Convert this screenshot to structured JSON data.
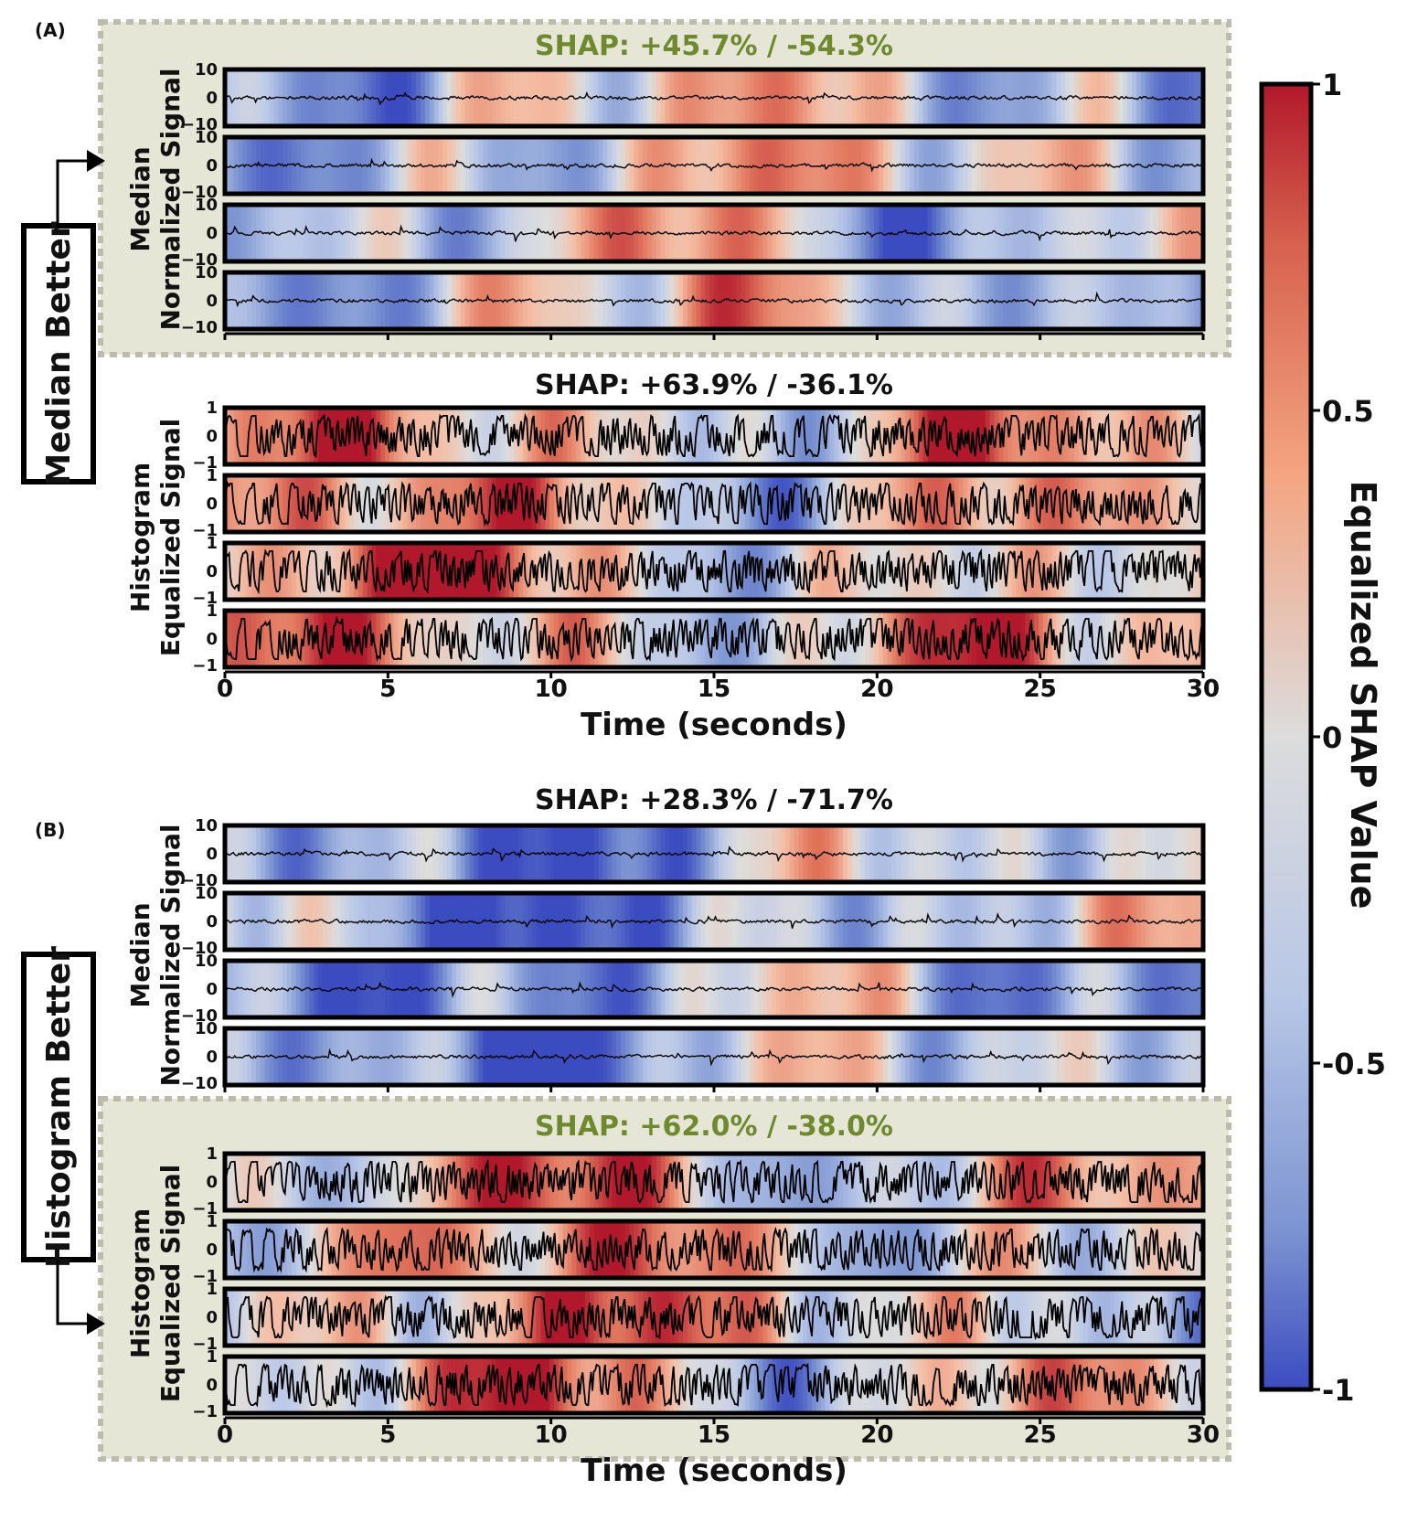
{
  "figure": {
    "panel_labels": [
      "(A)",
      "(B)"
    ],
    "sides": [
      "Median Better",
      "Histogram Better"
    ],
    "colorbar": {
      "label": "Equalized SHAP Value",
      "ticks": [
        "1",
        "0.5",
        "0",
        "-0.5",
        "-1"
      ],
      "colors": {
        "high": "#b2182b",
        "mid": "#dddddd",
        "low": "#3b4cc0"
      }
    },
    "colors": {
      "highlight_bg": "#e6e6d6",
      "highlight_border": "#bcbcaa",
      "highlight_title": "#6f8a2e"
    }
  },
  "chart_data": [
    {
      "type": "heatmap",
      "panel": "(A)",
      "title": "SHAP: +45.7% / -54.3%",
      "highlighted": true,
      "ylabel": [
        "Median",
        "Normalized Signal"
      ],
      "xlabel": "",
      "xlim": [
        0,
        30
      ],
      "xticks": [
        0,
        5,
        10,
        15,
        20,
        25,
        30
      ],
      "ylim": [
        -10,
        10
      ],
      "yticks": [
        "10",
        "0",
        "−10"
      ],
      "channels": 4,
      "signal_amplitude": 1.2,
      "shap_range": [
        -1,
        1
      ],
      "positive_pct": 45.7,
      "negative_pct": 54.3
    },
    {
      "type": "heatmap",
      "panel": "(A)",
      "title": "SHAP: +63.9% / -36.1%",
      "highlighted": false,
      "ylabel": [
        "Histogram",
        "Equalized Signal"
      ],
      "xlabel": "Time (seconds)",
      "xlim": [
        0,
        30
      ],
      "xticks": [
        0,
        5,
        10,
        15,
        20,
        25,
        30
      ],
      "ylim": [
        -1,
        1
      ],
      "yticks": [
        "1",
        "0",
        "−1"
      ],
      "channels": 4,
      "signal_amplitude": 0.85,
      "shap_range": [
        -1,
        1
      ],
      "positive_pct": 63.9,
      "negative_pct": 36.1
    },
    {
      "type": "heatmap",
      "panel": "(B)",
      "title": "SHAP: +28.3% / -71.7%",
      "highlighted": false,
      "ylabel": [
        "Median",
        "Normalized Signal"
      ],
      "xlabel": "",
      "xlim": [
        0,
        30
      ],
      "xticks": [
        0,
        5,
        10,
        15,
        20,
        25,
        30
      ],
      "ylim": [
        -10,
        10
      ],
      "yticks": [
        "10",
        "0",
        "−10"
      ],
      "channels": 4,
      "signal_amplitude": 1.2,
      "shap_range": [
        -1,
        1
      ],
      "positive_pct": 28.3,
      "negative_pct": 71.7
    },
    {
      "type": "heatmap",
      "panel": "(B)",
      "title": "SHAP: +62.0% / -38.0%",
      "highlighted": true,
      "ylabel": [
        "Histogram",
        "Equalized Signal"
      ],
      "xlabel": "Time (seconds)",
      "xlim": [
        0,
        30
      ],
      "xticks": [
        0,
        5,
        10,
        15,
        20,
        25,
        30
      ],
      "ylim": [
        -1,
        1
      ],
      "yticks": [
        "1",
        "0",
        "−1"
      ],
      "channels": 4,
      "signal_amplitude": 0.85,
      "shap_range": [
        -1,
        1
      ],
      "positive_pct": 62.0,
      "negative_pct": 38.0
    }
  ]
}
